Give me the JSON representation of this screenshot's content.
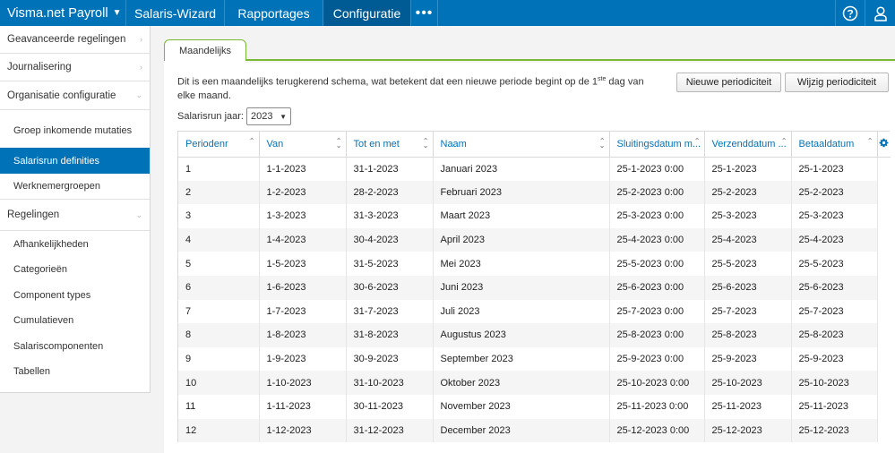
{
  "topbar": {
    "brand": "Visma.net Payroll",
    "nav": [
      "Salaris-Wizard",
      "Rapportages",
      "Configuratie"
    ],
    "more": "•••"
  },
  "sidebar": {
    "sections": [
      {
        "label": "Geavanceerde regelingen"
      },
      {
        "label": "Journalisering"
      },
      {
        "label": "Organisatie configuratie"
      }
    ],
    "org_items": [
      "Groep inkomende mutaties",
      "Salarisrun definities",
      "Werknemergroepen"
    ],
    "regelingen": "Regelingen",
    "reg_items": [
      "Afhankelijkheden",
      "Categorieën",
      "Component types",
      "Cumulatieven",
      "Salariscomponenten",
      "Tabellen"
    ]
  },
  "tab": "Maandelijks",
  "description": {
    "part1": "Dit is een maandelijks terugkerend schema, wat betekent dat een nieuwe periode begint op de 1",
    "sup": "ste",
    "part2": " dag van elke maand."
  },
  "buttons": {
    "new": "Nieuwe periodiciteit",
    "edit": "Wijzig periodiciteit"
  },
  "year": {
    "label": "Salarisrun jaar:",
    "value": "2023"
  },
  "table": {
    "columns": [
      "Periodenr",
      "Van",
      "Tot en met",
      "Naam",
      "Sluitingsdatum m...",
      "Verzenddatum ...",
      "Betaaldatum"
    ],
    "rows": [
      [
        "1",
        "1-1-2023",
        "31-1-2023",
        "Januari 2023",
        "25-1-2023 0:00",
        "25-1-2023",
        "25-1-2023"
      ],
      [
        "2",
        "1-2-2023",
        "28-2-2023",
        "Februari 2023",
        "25-2-2023 0:00",
        "25-2-2023",
        "25-2-2023"
      ],
      [
        "3",
        "1-3-2023",
        "31-3-2023",
        "Maart 2023",
        "25-3-2023 0:00",
        "25-3-2023",
        "25-3-2023"
      ],
      [
        "4",
        "1-4-2023",
        "30-4-2023",
        "April 2023",
        "25-4-2023 0:00",
        "25-4-2023",
        "25-4-2023"
      ],
      [
        "5",
        "1-5-2023",
        "31-5-2023",
        "Mei 2023",
        "25-5-2023 0:00",
        "25-5-2023",
        "25-5-2023"
      ],
      [
        "6",
        "1-6-2023",
        "30-6-2023",
        "Juni 2023",
        "25-6-2023 0:00",
        "25-6-2023",
        "25-6-2023"
      ],
      [
        "7",
        "1-7-2023",
        "31-7-2023",
        "Juli 2023",
        "25-7-2023 0:00",
        "25-7-2023",
        "25-7-2023"
      ],
      [
        "8",
        "1-8-2023",
        "31-8-2023",
        "Augustus 2023",
        "25-8-2023 0:00",
        "25-8-2023",
        "25-8-2023"
      ],
      [
        "9",
        "1-9-2023",
        "30-9-2023",
        "September 2023",
        "25-9-2023 0:00",
        "25-9-2023",
        "25-9-2023"
      ],
      [
        "10",
        "1-10-2023",
        "31-10-2023",
        "Oktober 2023",
        "25-10-2023 0:00",
        "25-10-2023",
        "25-10-2023"
      ],
      [
        "11",
        "1-11-2023",
        "30-11-2023",
        "November 2023",
        "25-11-2023 0:00",
        "25-11-2023",
        "25-11-2023"
      ],
      [
        "12",
        "1-12-2023",
        "31-12-2023",
        "December 2023",
        "25-12-2023 0:00",
        "25-12-2023",
        "25-12-2023"
      ]
    ]
  },
  "icons": {
    "help": "help-circle-icon",
    "user": "user-icon",
    "settings": "gear-icon"
  },
  "colors": {
    "brand": "#0073b8",
    "brand_active": "#005a93",
    "tab_accent": "#7ab934"
  }
}
